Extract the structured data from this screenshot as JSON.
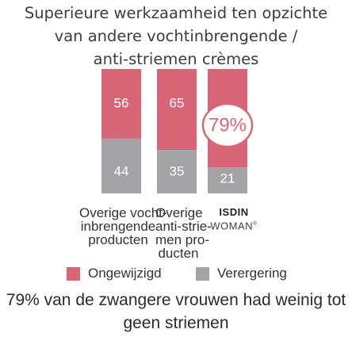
{
  "title_lines": [
    "Superieure werkzaamheid ten opzichte",
    "van andere vochtinbrengende /",
    "anti-striemen crèmes"
  ],
  "colors": {
    "ongewijzigd": "#d96676",
    "verergering": "#a4a4a6",
    "highlight_border": "#d96676",
    "highlight_text": "#d96676"
  },
  "chart_data": {
    "type": "bar",
    "stacked": true,
    "categories": [
      [
        "Overige vocht-",
        "inbrengende",
        "producten"
      ],
      [
        "Overige",
        "anti-strie-",
        "men pro-",
        "ducten"
      ],
      [
        "ISDIN",
        "WOMAN"
      ]
    ],
    "series": [
      {
        "name": "Ongewijzigd",
        "values": [
          56,
          65,
          79
        ]
      },
      {
        "name": "Verergering",
        "values": [
          44,
          35,
          21
        ]
      }
    ],
    "data_labels": [
      [
        "56",
        "65",
        "79%"
      ],
      [
        "44",
        "35",
        "21"
      ]
    ],
    "ylim": [
      0,
      100
    ],
    "legend_position": "bottom",
    "title": "Superieure werkzaamheid ten opzichte van andere vochtinbrengende / anti-striemen crèmes"
  },
  "isdin": {
    "brand": "ISDIN",
    "sub": "WOMAN",
    "reg": "®"
  },
  "legend": {
    "ongewijzigd": "Ongewijzigd",
    "verergering": "Verergering"
  },
  "footer_lines": [
    "79% van de zwangere vrouwen had weinig tot",
    "geen striemen"
  ]
}
